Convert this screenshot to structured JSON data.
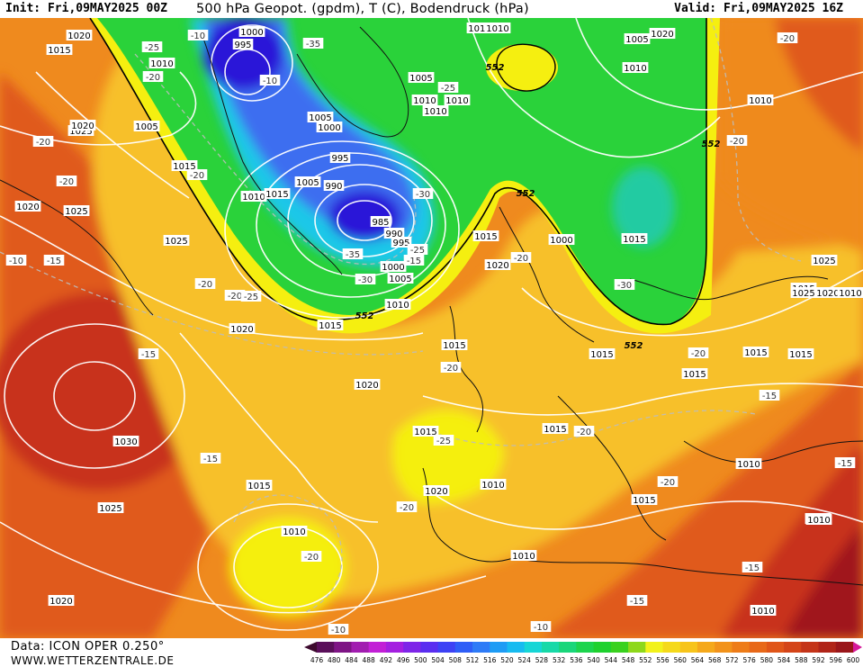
{
  "header": {
    "init": "Init: Fri,09MAY2025 00Z",
    "title": "500 hPa Geopot. (gpdm), T (C), Bodendruck (hPa)",
    "valid": "Valid: Fri,09MAY2025 16Z"
  },
  "footer": {
    "data_source": "Data: ICON OPER 0.250°",
    "site": "WWW.WETTERZENTRALE.DE"
  },
  "colorbar": {
    "ticks": [
      "476",
      "480",
      "484",
      "488",
      "492",
      "496",
      "500",
      "504",
      "508",
      "512",
      "516",
      "520",
      "524",
      "528",
      "532",
      "536",
      "540",
      "544",
      "548",
      "552",
      "556",
      "560",
      "564",
      "568",
      "572",
      "576",
      "580",
      "584",
      "588",
      "592",
      "596",
      "600"
    ],
    "colors": [
      "#3d0a2e",
      "#5a0f5a",
      "#7e1585",
      "#a11db0",
      "#c21fd6",
      "#a41fe0",
      "#7e25e8",
      "#5a2ef0",
      "#3d42f5",
      "#2e5ef7",
      "#2e7bf7",
      "#1e9cf5",
      "#17bbf0",
      "#16d6d6",
      "#17d9a8",
      "#19d67a",
      "#1cd44d",
      "#1ed12e",
      "#39d11e",
      "#8ed81a",
      "#f2f21a",
      "#f5d91a",
      "#f7c41a",
      "#f5a81a",
      "#f2921a",
      "#ee7c18",
      "#e86818",
      "#e05518",
      "#d44418",
      "#c43418",
      "#b02418",
      "#9a161a",
      "#d61a9a"
    ]
  },
  "map": {
    "colors": {
      "deep": "#2a14d8",
      "blue": "#3d6ef0",
      "cyan": "#1ec7e8",
      "green": "#2ad23a",
      "yellow": "#f5ef10",
      "light_orange": "#f7c02a",
      "orange": "#ef8a1e",
      "dark_orange": "#e05a1c",
      "red": "#c8331a",
      "dark_red": "#a0181c"
    },
    "geopotential_labels": [
      "552",
      "552",
      "552",
      "552",
      "552"
    ],
    "pressure_labels": [
      "1020",
      "1015",
      "1010",
      "1005",
      "1000",
      "995",
      "1005",
      "1000",
      "995",
      "1005",
      "990",
      "985",
      "990",
      "995",
      "1000",
      "1005",
      "1010",
      "1015",
      "1020",
      "1025",
      "1020",
      "1015",
      "1025",
      "1015",
      "1010",
      "1020",
      "1025",
      "1020",
      "1015",
      "1030",
      "1025",
      "1020",
      "1020",
      "1015",
      "1010",
      "1020",
      "1010",
      "1010",
      "1015",
      "1010",
      "1010",
      "1010",
      "1010",
      "1010",
      "1005",
      "1010",
      "1015",
      "1015",
      "1015",
      "1015",
      "1015",
      "1010",
      "1005",
      "1010",
      "1000",
      "1005",
      "1010",
      "1020",
      "1025",
      "1015",
      "1015",
      "1020",
      "1010",
      "1010",
      "1025",
      "1015",
      "1015"
    ],
    "temperature_labels": [
      "-25",
      "-20",
      "-20",
      "-20",
      "-20",
      "-15",
      "-20",
      "-20",
      "-15",
      "-15",
      "-20",
      "-20",
      "-25",
      "-30",
      "-35",
      "-35",
      "-25",
      "-25",
      "-30",
      "-30",
      "-20",
      "-20",
      "-20",
      "-25",
      "-20",
      "-20",
      "-20",
      "-20",
      "-15",
      "-15",
      "-15",
      "-15",
      "-10",
      "-10",
      "-10",
      "-10",
      "-10",
      "-15"
    ]
  }
}
